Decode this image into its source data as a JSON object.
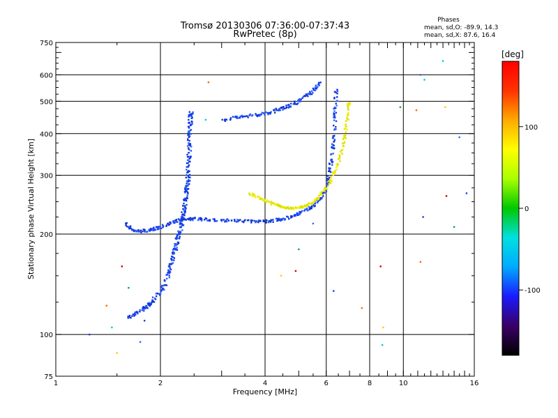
{
  "header": {
    "title": "Tromsø 20130306 07:36:00-07:37:43",
    "subtitle": "RwPretec (8p)",
    "phases_label": "Phases",
    "phases_o": "mean, sd,O: -89.9, 14.3",
    "phases_x": "mean, sd,X: 87.6, 16.4"
  },
  "colorbar": {
    "unit_label": "[deg]",
    "stops": [
      "#000000",
      "#3a0066",
      "#1a1aff",
      "#00aaff",
      "#00e0e0",
      "#00c800",
      "#aaff00",
      "#ffff00",
      "#ffaa00",
      "#ff3300",
      "#ff0000"
    ],
    "tick_labels": [
      "100",
      "0",
      "-100"
    ],
    "ticks": [
      100,
      0,
      -100
    ],
    "range": [
      -180,
      180
    ]
  },
  "chart_data": {
    "type": "scatter",
    "xlabel": "Frequency [MHz]",
    "ylabel": "Stationary phase Virtual Height [km]",
    "xscale": "log",
    "yscale": "log",
    "xlim": [
      1,
      16
    ],
    "ylim": [
      75,
      750
    ],
    "x_tick_labels": [
      "1",
      "2",
      "4",
      "6",
      "8",
      "10",
      "16"
    ],
    "x_ticks": [
      1,
      2,
      4,
      6,
      8,
      10,
      16
    ],
    "y_tick_labels": [
      "750",
      "600",
      "500",
      "400",
      "300",
      "200",
      "100",
      "75"
    ],
    "y_ticks": [
      750,
      600,
      500,
      400,
      300,
      200,
      100,
      75
    ],
    "grid": true,
    "colors": {
      "o_mode": "#1a3ce6",
      "x_mode": "#e6e600",
      "scatter_noise": "#1a3ce6"
    },
    "series": [
      {
        "points": [
          [
            1.6,
            112
          ],
          [
            1.75,
            118
          ],
          [
            1.85,
            122
          ],
          [
            1.95,
            130
          ],
          [
            2.05,
            140
          ],
          [
            2.12,
            155
          ],
          [
            2.18,
            170
          ],
          [
            2.22,
            185
          ],
          [
            2.26,
            200
          ],
          [
            2.3,
            215
          ],
          [
            2.33,
            230
          ],
          [
            2.36,
            250
          ],
          [
            2.38,
            270
          ],
          [
            2.4,
            290
          ],
          [
            2.41,
            320
          ],
          [
            2.42,
            360
          ],
          [
            2.43,
            400
          ],
          [
            2.44,
            440
          ],
          [
            2.45,
            465
          ]
        ]
      },
      {
        "points": [
          [
            1.58,
            215
          ],
          [
            1.65,
            207
          ],
          [
            1.75,
            204
          ],
          [
            1.85,
            205
          ],
          [
            1.95,
            208
          ],
          [
            2.05,
            212
          ],
          [
            2.2,
            218
          ],
          [
            2.35,
            222
          ],
          [
            2.5,
            222
          ],
          [
            2.7,
            221
          ],
          [
            3.0,
            220
          ],
          [
            3.3,
            219
          ],
          [
            3.6,
            218
          ],
          [
            3.9,
            218
          ],
          [
            4.2,
            219
          ],
          [
            4.5,
            222
          ],
          [
            4.8,
            226
          ],
          [
            5.1,
            232
          ],
          [
            5.4,
            240
          ],
          [
            5.7,
            252
          ],
          [
            5.95,
            270
          ],
          [
            6.1,
            295
          ],
          [
            6.2,
            330
          ],
          [
            6.28,
            370
          ],
          [
            6.33,
            420
          ],
          [
            6.37,
            480
          ],
          [
            6.4,
            540
          ]
        ]
      },
      {
        "points": [
          [
            3.0,
            440
          ],
          [
            3.2,
            445
          ],
          [
            3.4,
            448
          ],
          [
            3.6,
            452
          ],
          [
            3.8,
            455
          ],
          [
            4.0,
            460
          ],
          [
            4.2,
            465
          ],
          [
            4.4,
            472
          ],
          [
            4.6,
            480
          ],
          [
            4.8,
            490
          ],
          [
            5.0,
            500
          ],
          [
            5.2,
            515
          ],
          [
            5.4,
            530
          ],
          [
            5.6,
            550
          ],
          [
            5.75,
            570
          ]
        ]
      },
      {
        "points": [
          [
            3.6,
            265
          ],
          [
            3.8,
            258
          ],
          [
            4.0,
            252
          ],
          [
            4.2,
            247
          ],
          [
            4.4,
            243
          ],
          [
            4.6,
            240
          ],
          [
            4.8,
            239
          ],
          [
            5.0,
            240
          ],
          [
            5.2,
            242
          ],
          [
            5.4,
            246
          ],
          [
            5.6,
            252
          ],
          [
            5.8,
            262
          ],
          [
            6.0,
            275
          ],
          [
            6.2,
            292
          ],
          [
            6.4,
            315
          ],
          [
            6.6,
            345
          ],
          [
            6.75,
            380
          ],
          [
            6.85,
            420
          ],
          [
            6.92,
            460
          ],
          [
            6.97,
            495
          ]
        ]
      },
      {
        "points": [
          [
            1.25,
            100
          ],
          [
            1.4,
            122
          ],
          [
            1.45,
            105
          ],
          [
            1.5,
            88
          ],
          [
            1.55,
            160
          ],
          [
            1.62,
            138
          ],
          [
            1.75,
            95
          ],
          [
            1.8,
            110
          ],
          [
            2.75,
            570
          ],
          [
            2.7,
            440
          ],
          [
            4.45,
            150
          ],
          [
            4.9,
            155
          ],
          [
            5.0,
            180
          ],
          [
            5.5,
            215
          ],
          [
            6.3,
            135
          ],
          [
            7.6,
            120
          ],
          [
            8.7,
            93
          ],
          [
            8.75,
            105
          ],
          [
            8.6,
            160
          ],
          [
            9.8,
            480
          ],
          [
            11.2,
            600
          ],
          [
            11.4,
            225
          ],
          [
            11.2,
            165
          ],
          [
            13.0,
            660
          ],
          [
            13.2,
            480
          ],
          [
            13.3,
            260
          ],
          [
            14.0,
            210
          ],
          [
            14.5,
            390
          ],
          [
            15.2,
            265
          ],
          [
            10.9,
            470
          ],
          [
            11.5,
            580
          ]
        ]
      }
    ]
  }
}
